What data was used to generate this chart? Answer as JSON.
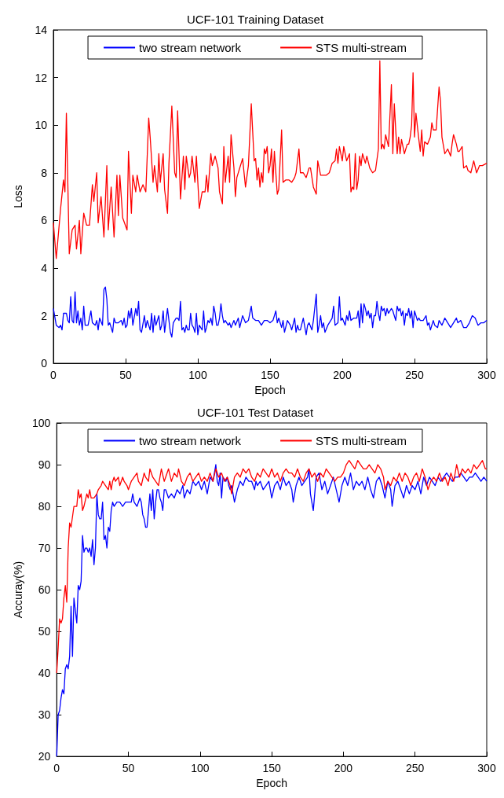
{
  "chart_data": [
    {
      "type": "line",
      "title": "UCF-101 Training Dataset",
      "xlabel": "Epoch",
      "ylabel": "Loss",
      "xlim": [
        0,
        300
      ],
      "xticks": [
        0,
        50,
        100,
        150,
        200,
        250,
        300
      ],
      "ylim": [
        0,
        14
      ],
      "yticks": [
        0,
        2,
        4,
        6,
        8,
        10,
        12,
        14
      ],
      "grid": false,
      "legend": "top",
      "marker": "none",
      "line_style": "solid",
      "series": [
        {
          "name": "two stream network",
          "color": "#0000ff",
          "x": [
            0,
            2,
            4,
            5,
            6,
            7,
            9,
            10,
            11,
            12,
            13,
            14,
            15,
            16,
            17,
            18,
            19,
            20,
            21,
            22,
            24,
            25,
            26,
            27,
            29,
            30,
            31,
            32,
            34,
            35,
            36,
            37,
            38,
            39,
            40,
            41,
            42,
            43,
            45,
            47,
            48,
            49,
            50,
            51,
            52,
            53,
            54,
            55,
            57,
            58,
            59,
            60,
            61,
            63,
            64,
            65,
            67,
            68,
            69,
            70,
            71,
            73,
            74,
            75,
            76,
            77,
            79,
            80,
            81,
            82,
            83,
            85,
            86,
            87,
            88,
            89,
            90,
            91,
            92,
            93,
            94,
            95,
            96,
            97,
            98,
            99,
            100,
            101,
            102,
            103,
            104,
            105,
            106,
            107,
            108,
            109,
            110,
            111,
            112,
            113,
            114,
            115,
            116,
            117,
            118,
            119,
            120,
            121,
            122,
            123,
            125,
            126,
            128,
            129,
            131,
            133,
            135,
            137,
            138,
            140,
            142,
            144,
            146,
            148,
            150,
            152,
            154,
            155,
            156,
            158,
            159,
            160,
            162,
            164,
            165,
            167,
            168,
            169,
            170,
            171,
            173,
            175,
            176,
            177,
            179,
            180,
            182,
            183,
            184,
            185,
            186,
            187,
            188,
            190,
            192,
            193,
            194,
            195,
            197,
            198,
            199,
            200,
            202,
            203,
            204,
            205,
            206,
            208,
            210,
            211,
            212,
            213,
            214,
            215,
            216,
            217,
            218,
            219,
            220,
            221,
            222,
            223,
            224,
            225,
            226,
            227,
            228,
            229,
            230,
            231,
            232,
            234,
            235,
            237,
            238,
            239,
            240,
            241,
            242,
            243,
            244,
            245,
            246,
            247,
            248,
            249,
            250,
            251,
            252,
            253,
            254,
            256,
            258,
            259,
            260,
            261,
            263,
            264,
            266,
            267,
            269,
            271,
            273,
            275,
            277,
            279,
            280,
            282,
            284,
            286,
            288,
            290,
            292,
            294,
            296,
            298,
            300
          ],
          "values": [
            2.3,
            1.6,
            1.5,
            1.6,
            1.4,
            2.1,
            2.1,
            1.8,
            1.7,
            2.8,
            1.8,
            1.7,
            3.0,
            1.7,
            2.2,
            1.6,
            1.9,
            1.4,
            2.4,
            1.6,
            1.6,
            1.9,
            2.2,
            1.7,
            1.6,
            1.8,
            1.4,
            1.9,
            1.6,
            3.1,
            3.2,
            2.7,
            1.6,
            1.7,
            1.5,
            1.3,
            1.9,
            1.7,
            1.7,
            1.8,
            1.6,
            1.9,
            1.5,
            1.6,
            2.2,
            1.9,
            2.3,
            1.6,
            2.3,
            2.0,
            2.6,
            1.4,
            1.3,
            2.0,
            1.5,
            1.8,
            1.4,
            2.1,
            1.3,
            2.0,
            1.6,
            2.0,
            1.4,
            1.6,
            2.2,
            1.3,
            2.3,
            1.8,
            1.3,
            1.1,
            1.7,
            1.9,
            1.9,
            1.8,
            2.6,
            1.4,
            1.5,
            1.3,
            1.6,
            1.4,
            1.4,
            2.1,
            1.6,
            1.5,
            1.3,
            2.1,
            1.2,
            1.6,
            1.5,
            1.4,
            2.2,
            1.3,
            1.5,
            1.8,
            1.7,
            1.9,
            1.6,
            2.4,
            2.1,
            1.6,
            1.6,
            1.9,
            2.5,
            2.0,
            1.7,
            1.8,
            1.7,
            1.6,
            1.7,
            1.5,
            1.8,
            1.6,
            1.9,
            1.5,
            2.0,
            1.7,
            1.8,
            2.4,
            1.9,
            1.8,
            1.8,
            1.6,
            1.8,
            1.8,
            1.7,
            1.8,
            2.2,
            1.7,
            1.9,
            1.5,
            1.8,
            1.3,
            1.8,
            1.6,
            1.4,
            1.9,
            1.3,
            1.6,
            1.4,
            1.4,
            1.9,
            1.2,
            1.6,
            1.7,
            1.4,
            1.8,
            2.9,
            1.3,
            1.6,
            2.0,
            1.5,
            1.7,
            1.3,
            1.6,
            1.8,
            1.9,
            2.4,
            1.6,
            1.7,
            2.8,
            1.8,
            1.9,
            1.6,
            2.0,
            1.8,
            2.2,
            1.8,
            1.9,
            1.9,
            2.2,
            1.5,
            2.5,
            1.7,
            2.5,
            2.3,
            2.0,
            2.2,
            1.9,
            2.1,
            1.5,
            2.0,
            2.0,
            2.6,
            2.1,
            1.8,
            2.4,
            2.2,
            2.3,
            2.0,
            2.3,
            2.1,
            2.3,
            2.2,
            1.8,
            2.4,
            2.2,
            2.3,
            2.0,
            2.2,
            1.6,
            2.1,
            2.0,
            2.3,
            1.9,
            2.2,
            1.5,
            2.2,
            2.0,
            1.8,
            1.9,
            1.8,
            1.8,
            2.0,
            1.6,
            1.7,
            1.4,
            1.8,
            1.6,
            1.5,
            1.8,
            1.6,
            1.9,
            1.7,
            1.5,
            1.7,
            1.9,
            1.7,
            1.8,
            1.5,
            1.5,
            1.7,
            2.0,
            1.9,
            1.6,
            1.7,
            1.7,
            1.8
          ]
        },
        {
          "name": "STS multi-stream",
          "color": "#ff0000",
          "x": [
            0,
            2,
            5,
            7,
            8,
            9,
            11,
            13,
            15,
            16,
            18,
            19,
            21,
            23,
            25,
            27,
            28,
            30,
            31,
            33,
            35,
            37,
            38,
            40,
            42,
            44,
            45,
            46,
            48,
            51,
            52,
            54,
            55,
            57,
            58,
            60,
            62,
            64,
            66,
            67,
            69,
            70,
            72,
            73,
            74,
            76,
            77,
            79,
            80,
            82,
            84,
            85,
            86,
            88,
            90,
            91,
            92,
            94,
            95,
            96,
            98,
            99,
            101,
            103,
            105,
            106,
            107,
            109,
            110,
            112,
            114,
            115,
            117,
            118,
            119,
            121,
            122,
            123,
            125,
            126,
            127,
            129,
            131,
            133,
            135,
            137,
            139,
            140,
            141,
            142,
            143,
            144,
            145,
            146,
            147,
            148,
            149,
            150,
            151,
            152,
            153,
            155,
            156,
            158,
            159,
            161,
            163,
            165,
            167,
            168,
            170,
            171,
            173,
            175,
            177,
            178,
            180,
            182,
            183,
            185,
            187,
            189,
            191,
            193,
            195,
            196,
            197,
            198,
            200,
            201,
            203,
            205,
            206,
            207,
            208,
            209,
            210,
            211,
            212,
            213,
            214,
            216,
            217,
            219,
            221,
            223,
            225,
            226,
            227,
            228,
            229,
            230,
            232,
            234,
            235,
            236,
            237,
            238,
            239,
            240,
            241,
            243,
            245,
            246,
            247,
            248,
            249,
            250,
            251,
            253,
            254,
            255,
            256,
            257,
            259,
            261,
            262,
            263,
            265,
            267,
            268,
            269,
            271,
            273,
            275,
            276,
            277,
            279,
            280,
            281,
            283,
            284,
            286,
            287,
            289,
            291,
            293,
            295,
            297,
            300
          ],
          "values": [
            5.9,
            4.4,
            6.5,
            7.7,
            7.2,
            10.5,
            4.6,
            5.6,
            5.8,
            4.8,
            6.0,
            4.6,
            6.3,
            5.8,
            5.8,
            7.5,
            6.8,
            8.0,
            5.9,
            7.0,
            5.3,
            8.3,
            5.6,
            7.4,
            5.3,
            7.9,
            6.2,
            7.9,
            6.1,
            5.6,
            8.9,
            6.3,
            7.9,
            7.2,
            7.9,
            7.2,
            7.5,
            7.2,
            10.3,
            9.5,
            7.6,
            8.3,
            7.2,
            8.8,
            7.6,
            8.8,
            7.3,
            6.3,
            8.4,
            10.8,
            8.0,
            7.8,
            10.6,
            6.9,
            8.7,
            7.3,
            8.7,
            7.8,
            8.0,
            8.7,
            7.6,
            8.7,
            6.5,
            7.2,
            7.2,
            7.9,
            7.2,
            8.8,
            8.3,
            8.7,
            8.2,
            7.2,
            6.7,
            9.1,
            7.6,
            8.7,
            7.6,
            9.6,
            8.2,
            7.0,
            7.8,
            8.2,
            8.6,
            7.4,
            8.3,
            10.9,
            8.5,
            8.6,
            7.7,
            8.2,
            7.4,
            8.0,
            7.6,
            9.0,
            8.8,
            9.1,
            8.0,
            8.3,
            9.0,
            7.6,
            8.9,
            7.1,
            7.3,
            9.8,
            7.6,
            7.7,
            7.7,
            7.6,
            7.8,
            8.0,
            9.0,
            8.0,
            8.0,
            7.8,
            8.2,
            8.2,
            7.4,
            7.1,
            8.5,
            7.9,
            7.9,
            7.9,
            8.0,
            8.4,
            8.5,
            9.0,
            8.4,
            9.1,
            8.5,
            9.1,
            8.5,
            8.8,
            7.2,
            7.4,
            7.3,
            8.8,
            7.3,
            7.7,
            8.7,
            8.3,
            8.8,
            8.4,
            8.7,
            8.2,
            8.0,
            8.1,
            9.0,
            12.7,
            9.0,
            9.2,
            9.0,
            9.6,
            9.1,
            11.7,
            8.8,
            10.9,
            9.8,
            8.8,
            9.5,
            8.8,
            9.4,
            8.8,
            9.2,
            9.2,
            9.5,
            10.0,
            12.2,
            9.5,
            10.5,
            9.4,
            8.9,
            9.8,
            8.7,
            9.3,
            9.2,
            9.5,
            10.1,
            9.8,
            9.8,
            11.6,
            11.0,
            9.5,
            8.8,
            9.0,
            8.7,
            9.2,
            9.6,
            9.2,
            8.9,
            8.9,
            9.1,
            8.2,
            8.3,
            8.1,
            8.0,
            8.5,
            8.0,
            8.3,
            8.3,
            8.4
          ]
        }
      ]
    },
    {
      "type": "line",
      "title": "UCF-101 Test Dataset",
      "xlabel": "Epoch",
      "ylabel": "Accuray(%)",
      "xlim": [
        0,
        300
      ],
      "xticks": [
        0,
        50,
        100,
        150,
        200,
        250,
        300
      ],
      "ylim": [
        20,
        100
      ],
      "yticks": [
        20,
        30,
        40,
        50,
        60,
        70,
        80,
        90,
        100
      ],
      "grid": false,
      "legend": "top",
      "marker": "none",
      "line_style": "solid",
      "series": [
        {
          "name": "two stream network",
          "color": "#0000ff",
          "x": [
            0,
            1,
            2,
            3,
            4,
            5,
            6,
            7,
            8,
            9,
            10,
            11,
            12,
            13,
            14,
            15,
            16,
            17,
            18,
            19,
            20,
            21,
            22,
            23,
            24,
            25,
            26,
            27,
            28,
            29,
            30,
            31,
            32,
            33,
            34,
            35,
            36,
            37,
            38,
            39,
            40,
            42,
            44,
            46,
            48,
            50,
            52,
            53,
            54,
            56,
            58,
            59,
            60,
            61,
            62,
            63,
            64,
            65,
            66,
            67,
            68,
            69,
            70,
            71,
            72,
            73,
            74,
            75,
            76,
            78,
            80,
            82,
            84,
            86,
            88,
            89,
            91,
            93,
            95,
            97,
            99,
            101,
            103,
            105,
            107,
            109,
            110,
            111,
            112,
            113,
            114,
            115,
            116,
            118,
            119,
            120,
            121,
            122,
            124,
            126,
            128,
            130,
            132,
            134,
            136,
            138,
            139,
            140,
            142,
            144,
            146,
            148,
            150,
            152,
            154,
            156,
            158,
            160,
            162,
            164,
            165,
            167,
            169,
            171,
            173,
            175,
            176,
            177,
            179,
            181,
            183,
            185,
            187,
            189,
            191,
            193,
            195,
            197,
            199,
            201,
            203,
            205,
            207,
            209,
            211,
            213,
            215,
            217,
            219,
            221,
            223,
            225,
            227,
            229,
            231,
            233,
            234,
            236,
            238,
            240,
            242,
            244,
            246,
            248,
            250,
            252,
            254,
            256,
            258,
            260,
            262,
            264,
            266,
            268,
            270,
            272,
            274,
            276,
            278,
            280,
            282,
            284,
            286,
            288,
            290,
            292,
            294,
            296,
            298,
            300
          ],
          "values": [
            20,
            30,
            31,
            34,
            36,
            35,
            41,
            42,
            41,
            44,
            56,
            44,
            58,
            55,
            52,
            61,
            60,
            62,
            73,
            69,
            70,
            70,
            69,
            70,
            68,
            72,
            66,
            70,
            83,
            78,
            77,
            77,
            81,
            72,
            73,
            70,
            75,
            74,
            79,
            81,
            80,
            81,
            81,
            80,
            81,
            81,
            81,
            83,
            81,
            80,
            82,
            81,
            78,
            77,
            75,
            75,
            79,
            83,
            79,
            84,
            77,
            81,
            84,
            84,
            82,
            81,
            79,
            84,
            84,
            82,
            83,
            82,
            84,
            83,
            85,
            82,
            84,
            83,
            86,
            85,
            86,
            84,
            86,
            83,
            87,
            86,
            88,
            90,
            86,
            85,
            88,
            82,
            87,
            86,
            87,
            85,
            84,
            85,
            81,
            84,
            86,
            85,
            87,
            86,
            86,
            84,
            86,
            85,
            86,
            84,
            85,
            86,
            82,
            85,
            86,
            84,
            87,
            85,
            86,
            84,
            81,
            85,
            87,
            85,
            86,
            87,
            89,
            83,
            79,
            87,
            88,
            84,
            86,
            83,
            85,
            87,
            84,
            81,
            85,
            87,
            85,
            88,
            84,
            86,
            85,
            86,
            84,
            87,
            84,
            82,
            86,
            87,
            85,
            82,
            86,
            84,
            80,
            85,
            86,
            84,
            82,
            85,
            83,
            85,
            84,
            86,
            83,
            87,
            85,
            87,
            86,
            85,
            87,
            86,
            87,
            88,
            87,
            86,
            87,
            87,
            88,
            87,
            86,
            87,
            87,
            88,
            87,
            86,
            87,
            86
          ]
        },
        {
          "name": "STS multi-stream",
          "color": "#ff0000",
          "x": [
            0,
            1,
            2,
            3,
            4,
            5,
            6,
            7,
            8,
            9,
            10,
            12,
            14,
            15,
            16,
            17,
            18,
            19,
            21,
            22,
            23,
            24,
            26,
            28,
            29,
            31,
            32,
            34,
            36,
            37,
            38,
            39,
            40,
            41,
            43,
            44,
            46,
            47,
            49,
            50,
            52,
            54,
            56,
            57,
            59,
            61,
            62,
            64,
            65,
            67,
            69,
            71,
            73,
            75,
            76,
            78,
            80,
            82,
            84,
            85,
            87,
            89,
            91,
            93,
            95,
            97,
            99,
            101,
            103,
            105,
            107,
            109,
            111,
            113,
            115,
            117,
            119,
            121,
            122,
            124,
            126,
            128,
            130,
            132,
            134,
            136,
            138,
            140,
            142,
            144,
            146,
            148,
            150,
            152,
            154,
            156,
            158,
            160,
            162,
            164,
            166,
            168,
            170,
            172,
            174,
            176,
            178,
            180,
            182,
            184,
            186,
            188,
            190,
            192,
            194,
            196,
            198,
            200,
            202,
            204,
            206,
            208,
            210,
            212,
            214,
            216,
            218,
            220,
            222,
            224,
            226,
            228,
            229,
            231,
            233,
            235,
            237,
            239,
            241,
            243,
            245,
            247,
            249,
            251,
            253,
            255,
            257,
            259,
            261,
            263,
            265,
            267,
            269,
            271,
            273,
            275,
            277,
            279,
            281,
            283,
            285,
            287,
            289,
            291,
            293,
            295,
            297,
            299,
            300
          ],
          "values": [
            40,
            46,
            53,
            52,
            53,
            58,
            61,
            57,
            70,
            76,
            75,
            80,
            80,
            84,
            82,
            83,
            79,
            80,
            83,
            82,
            84,
            82,
            82,
            83,
            84,
            85,
            86,
            85,
            84,
            86,
            84,
            86,
            87,
            86,
            87,
            85,
            87,
            86,
            85,
            84,
            86,
            87,
            88,
            86,
            85,
            88,
            87,
            86,
            89,
            87,
            86,
            85,
            89,
            86,
            87,
            89,
            86,
            88,
            87,
            89,
            86,
            85,
            87,
            88,
            86,
            87,
            88,
            86,
            87,
            86,
            88,
            86,
            89,
            87,
            88,
            86,
            87,
            85,
            83,
            87,
            88,
            87,
            89,
            88,
            89,
            87,
            86,
            88,
            87,
            89,
            88,
            87,
            89,
            87,
            88,
            86,
            88,
            89,
            88,
            88,
            87,
            89,
            87,
            86,
            88,
            89,
            87,
            88,
            86,
            88,
            87,
            89,
            88,
            87,
            86,
            87,
            87,
            88,
            90,
            91,
            90,
            89,
            91,
            90,
            89,
            89,
            90,
            89,
            88,
            90,
            89,
            87,
            84,
            86,
            85,
            87,
            86,
            88,
            86,
            88,
            87,
            85,
            87,
            88,
            86,
            89,
            87,
            84,
            86,
            87,
            86,
            88,
            86,
            87,
            85,
            88,
            86,
            90,
            87,
            89,
            88,
            89,
            88,
            90,
            89,
            90,
            91,
            89,
            89
          ]
        }
      ]
    }
  ]
}
